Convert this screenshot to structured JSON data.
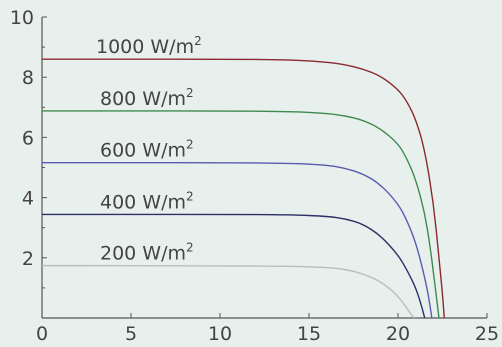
{
  "chart_data": {
    "type": "line",
    "title": "",
    "xlabel": "",
    "ylabel": "",
    "xlim": [
      0,
      25
    ],
    "ylim": [
      0,
      10
    ],
    "xticks": [
      0,
      5,
      10,
      15,
      20,
      25
    ],
    "yticks": [
      2,
      4,
      6,
      8,
      10
    ],
    "grid": false,
    "series": [
      {
        "label_text": "1000 W/m",
        "label_sup": "2",
        "color": "#8b2a2e",
        "points": [
          [
            0,
            8.6
          ],
          [
            5,
            8.6
          ],
          [
            10,
            8.6
          ],
          [
            14,
            8.58
          ],
          [
            16,
            8.5
          ],
          [
            17,
            8.42
          ],
          [
            18,
            8.28
          ],
          [
            19,
            8.05
          ],
          [
            20,
            7.6
          ],
          [
            20.5,
            7.2
          ],
          [
            21,
            6.6
          ],
          [
            21.5,
            5.6
          ],
          [
            22,
            3.8
          ],
          [
            22.3,
            2.0
          ],
          [
            22.5,
            0.8
          ],
          [
            22.6,
            0.0
          ]
        ]
      },
      {
        "label_text": "800 W/m",
        "label_sup": "2",
        "color": "#3f8a4e",
        "points": [
          [
            0,
            6.88
          ],
          [
            5,
            6.88
          ],
          [
            10,
            6.88
          ],
          [
            14,
            6.86
          ],
          [
            16,
            6.8
          ],
          [
            17,
            6.72
          ],
          [
            18,
            6.58
          ],
          [
            19,
            6.3
          ],
          [
            20,
            5.8
          ],
          [
            20.5,
            5.3
          ],
          [
            21,
            4.6
          ],
          [
            21.5,
            3.5
          ],
          [
            21.8,
            2.4
          ],
          [
            22.1,
            1.0
          ],
          [
            22.3,
            0.0
          ]
        ]
      },
      {
        "label_text": "600 W/m",
        "label_sup": "2",
        "color": "#5a5ab0",
        "points": [
          [
            0,
            5.16
          ],
          [
            5,
            5.16
          ],
          [
            10,
            5.16
          ],
          [
            14,
            5.14
          ],
          [
            16,
            5.08
          ],
          [
            17,
            4.98
          ],
          [
            18,
            4.8
          ],
          [
            19,
            4.45
          ],
          [
            20,
            3.8
          ],
          [
            20.5,
            3.25
          ],
          [
            21,
            2.5
          ],
          [
            21.4,
            1.6
          ],
          [
            21.7,
            0.8
          ],
          [
            21.9,
            0.0
          ]
        ]
      },
      {
        "label_text": "400 W/m",
        "label_sup": "2",
        "color": "#2b2f66",
        "points": [
          [
            0,
            3.44
          ],
          [
            5,
            3.44
          ],
          [
            10,
            3.44
          ],
          [
            14,
            3.43
          ],
          [
            16,
            3.38
          ],
          [
            17,
            3.3
          ],
          [
            18,
            3.13
          ],
          [
            19,
            2.75
          ],
          [
            20,
            2.1
          ],
          [
            20.5,
            1.6
          ],
          [
            21,
            1.0
          ],
          [
            21.3,
            0.45
          ],
          [
            21.5,
            0.0
          ]
        ]
      },
      {
        "label_text": "200 W/m",
        "label_sup": "2",
        "color": "#bcbcbc",
        "points": [
          [
            0,
            1.74
          ],
          [
            5,
            1.74
          ],
          [
            10,
            1.73
          ],
          [
            14,
            1.72
          ],
          [
            16,
            1.68
          ],
          [
            17,
            1.62
          ],
          [
            18,
            1.48
          ],
          [
            19,
            1.22
          ],
          [
            19.8,
            0.85
          ],
          [
            20.3,
            0.5
          ],
          [
            20.7,
            0.15
          ],
          [
            20.9,
            0.0
          ]
        ]
      }
    ]
  }
}
